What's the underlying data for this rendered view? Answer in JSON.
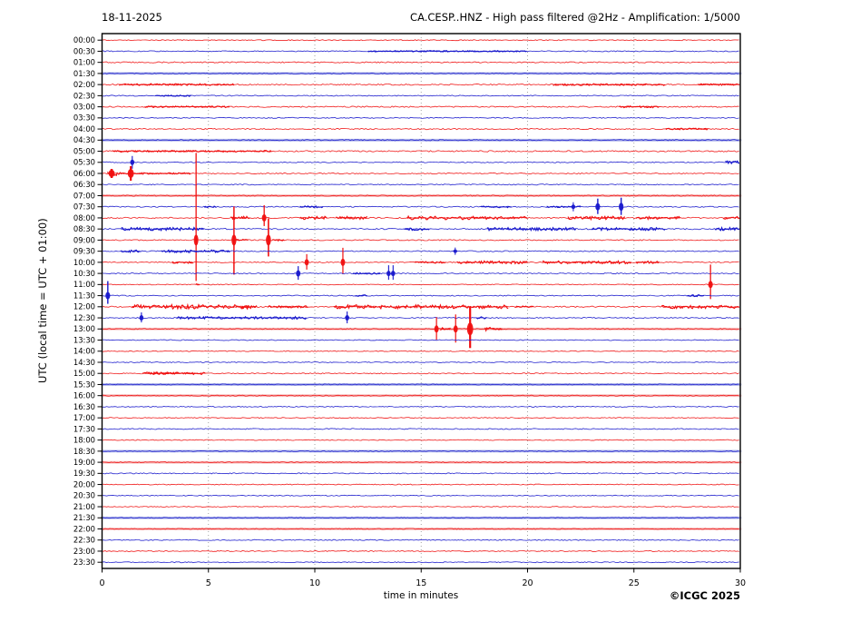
{
  "header": {
    "date": "18-11-2025",
    "title": "CA.CESP..HNZ - High pass filtered @2Hz - Amplification: 1/5000"
  },
  "axes": {
    "y_label": "UTC (local time = UTC + 01:00)",
    "x_label": "time in minutes",
    "x_ticks": [
      0,
      5,
      10,
      15,
      20,
      25,
      30
    ],
    "x_range": [
      0,
      30
    ],
    "grid": "vertical-dotted"
  },
  "footer": {
    "copyright": "©ICGC 2025"
  },
  "colors": {
    "red": "#f01010",
    "blue": "#1818cc",
    "red_light": "#f6b6b6",
    "blue_light": "#aab2e8",
    "grid": "#999999",
    "frame": "#000000"
  },
  "chart_data": {
    "type": "line",
    "subtype": "helicorder-seismogram",
    "station": "CA.CESP..HNZ",
    "filter": "High pass filtered @2Hz",
    "amplification": "1/5000",
    "date": "18-11-2025",
    "minutes_per_row": 30,
    "rows": [
      {
        "time": "00:00",
        "color": "red",
        "noise": 0.5
      },
      {
        "time": "00:30",
        "color": "blue",
        "noise": 0.55,
        "segments": [
          [
            12.5,
            20,
            0.7
          ]
        ]
      },
      {
        "time": "01:00",
        "color": "red",
        "noise": 0.65
      },
      {
        "time": "01:30",
        "color": "blue",
        "noise": 0.5,
        "band": true
      },
      {
        "time": "02:00",
        "color": "red",
        "noise": 0.7,
        "segments": [
          [
            0.8,
            6.2,
            0.95
          ],
          [
            21.2,
            26.5,
            1.0
          ],
          [
            28,
            30,
            0.8
          ]
        ]
      },
      {
        "time": "02:30",
        "color": "blue",
        "noise": 0.55,
        "segments": [
          [
            2.5,
            4.2,
            0.8
          ]
        ]
      },
      {
        "time": "03:00",
        "color": "red",
        "noise": 0.7,
        "segments": [
          [
            2,
            6,
            0.85
          ],
          [
            24.3,
            26.2,
            0.95
          ]
        ]
      },
      {
        "time": "03:30",
        "color": "blue",
        "noise": 0.55
      },
      {
        "time": "04:00",
        "color": "red",
        "noise": 0.65,
        "segments": [
          [
            26.5,
            28.5,
            0.8
          ]
        ]
      },
      {
        "time": "04:30",
        "color": "blue",
        "noise": 0.6,
        "band": true
      },
      {
        "time": "05:00",
        "color": "red",
        "noise": 0.75,
        "segments": [
          [
            0.5,
            8,
            0.85
          ]
        ]
      },
      {
        "time": "05:30",
        "color": "blue",
        "noise": 0.55,
        "segments": [
          [
            29.3,
            30,
            1.6
          ]
        ],
        "spikes": [
          {
            "m": 1.42,
            "up": 7,
            "dn": 7,
            "w": 1.1,
            "body": 3
          }
        ]
      },
      {
        "time": "06:00",
        "color": "red",
        "noise": 0.6,
        "segments": [
          [
            0.25,
            0.75,
            2.2
          ],
          [
            0.75,
            2.1,
            1.2
          ],
          [
            2.1,
            4.2,
            0.8
          ]
        ],
        "spikes": [
          {
            "m": 0.45,
            "up": 5,
            "dn": 5,
            "w": 2.5,
            "body": 4
          },
          {
            "m": 1.35,
            "up": 8,
            "dn": 8,
            "w": 2.2,
            "body": 5
          }
        ]
      },
      {
        "time": "06:30",
        "color": "blue",
        "noise": 0.55
      },
      {
        "time": "07:00",
        "color": "red",
        "noise": 0.6,
        "band": true
      },
      {
        "time": "07:30",
        "color": "blue",
        "noise": 0.6,
        "segments": [
          [
            4.8,
            5.4,
            0.9
          ],
          [
            9.3,
            10.4,
            1.0
          ],
          [
            17.8,
            19.3,
            1.0
          ],
          [
            20.9,
            22.5,
            0.8
          ]
        ],
        "spikes": [
          {
            "m": 22.15,
            "up": 5,
            "dn": 5,
            "w": 1,
            "body": 2.5
          },
          {
            "m": 23.3,
            "up": 9,
            "dn": 8,
            "w": 1.4,
            "body": 4
          },
          {
            "m": 24.4,
            "up": 10,
            "dn": 9,
            "w": 1.4,
            "body": 4.5
          }
        ]
      },
      {
        "time": "08:00",
        "color": "red",
        "noise": 0.7,
        "segments": [
          [
            6.05,
            6.95,
            2.0
          ],
          [
            9.3,
            10.6,
            1.7
          ],
          [
            11.0,
            12.5,
            1.7
          ],
          [
            14.35,
            17.5,
            1.9
          ],
          [
            17.5,
            20.0,
            1.5
          ],
          [
            21.9,
            24.6,
            1.7
          ],
          [
            25.1,
            27.2,
            1.5
          ],
          [
            29.2,
            30,
            1.5
          ]
        ],
        "spikes": [
          {
            "m": 7.62,
            "up": 14,
            "dn": 9,
            "w": 1.3,
            "body": 4
          }
        ]
      },
      {
        "time": "08:30",
        "color": "blue",
        "noise": 0.7,
        "segments": [
          [
            0.9,
            4.8,
            1.6
          ],
          [
            14.2,
            15.4,
            1.7
          ],
          [
            18.1,
            22.3,
            1.6
          ],
          [
            23.0,
            26.5,
            1.5
          ],
          [
            28.8,
            30,
            1.7
          ]
        ]
      },
      {
        "time": "09:00",
        "color": "red",
        "noise": 0.6,
        "segments": [
          [
            6.3,
            6.9,
            0.9
          ],
          [
            8.0,
            8.6,
            0.9
          ]
        ],
        "spikes": [
          {
            "m": 4.42,
            "up": 96,
            "dn": 45,
            "w": 1.3,
            "body": 6
          },
          {
            "m": 6.2,
            "up": 37,
            "dn": 38,
            "w": 1.5,
            "body": 6
          },
          {
            "m": 7.82,
            "up": 24,
            "dn": 18,
            "w": 1.6,
            "body": 6
          }
        ]
      },
      {
        "time": "09:30",
        "color": "blue",
        "noise": 0.6,
        "segments": [
          [
            0.9,
            1.8,
            1.3
          ],
          [
            2.8,
            6.0,
            1.4
          ]
        ],
        "spikes": [
          {
            "m": 16.6,
            "up": 4,
            "dn": 4,
            "w": 1,
            "body": 2
          }
        ]
      },
      {
        "time": "10:00",
        "color": "red",
        "noise": 0.6,
        "segments": [
          [
            3.3,
            4.3,
            1.1
          ],
          [
            14.7,
            16.2,
            0.9
          ],
          [
            16.7,
            20.0,
            1.5
          ],
          [
            20.7,
            24.9,
            1.5
          ],
          [
            25.1,
            26.2,
            1.3
          ]
        ],
        "spikes": [
          {
            "m": 9.62,
            "up": 9,
            "dn": 8,
            "w": 1.2,
            "body": 3.5
          },
          {
            "m": 11.32,
            "up": 16,
            "dn": 13,
            "w": 1.2,
            "body": 4
          }
        ]
      },
      {
        "time": "10:30",
        "color": "blue",
        "noise": 0.6,
        "segments": [
          [
            11.8,
            13.1,
            0.8
          ]
        ],
        "spikes": [
          {
            "m": 9.22,
            "up": 8,
            "dn": 7,
            "w": 1.2,
            "body": 3.5
          },
          {
            "m": 13.47,
            "up": 9,
            "dn": 7,
            "w": 1.1,
            "body": 3
          },
          {
            "m": 13.68,
            "up": 9,
            "dn": 7,
            "w": 1.1,
            "body": 3
          }
        ]
      },
      {
        "time": "11:00",
        "color": "red",
        "noise": 0.5,
        "segments": [
          [
            4.4,
            4.6,
            0.8
          ]
        ],
        "spikes": [
          {
            "m": 28.6,
            "up": 22,
            "dn": 16,
            "w": 1.3,
            "body": 4
          }
        ]
      },
      {
        "time": "11:30",
        "color": "blue",
        "noise": 0.55,
        "segments": [
          [
            11.9,
            12.5,
            0.9
          ],
          [
            27.5,
            28.3,
            1.0
          ]
        ],
        "spikes": [
          {
            "m": 0.27,
            "up": 16,
            "dn": 9,
            "w": 1.4,
            "body": 4
          }
        ]
      },
      {
        "time": "12:00",
        "color": "red",
        "noise": 0.7,
        "segments": [
          [
            1.4,
            7.3,
            2.2
          ],
          [
            6.55,
            6.9,
            2.6
          ],
          [
            7.8,
            9.7,
            1.1
          ],
          [
            10.9,
            15.2,
            2.1
          ],
          [
            15.2,
            19.1,
            1.9
          ],
          [
            19.4,
            20.3,
            0.9
          ],
          [
            26.3,
            30,
            1.9
          ]
        ]
      },
      {
        "time": "12:30",
        "color": "blue",
        "noise": 0.6,
        "segments": [
          [
            3.5,
            9.6,
            1.3
          ],
          [
            17.6,
            18.1,
            1.4
          ]
        ],
        "spikes": [
          {
            "m": 1.85,
            "up": 6,
            "dn": 5,
            "w": 1.1,
            "body": 3
          },
          {
            "m": 11.52,
            "up": 7,
            "dn": 6,
            "w": 1.1,
            "body": 3
          }
        ]
      },
      {
        "time": "13:00",
        "color": "red",
        "noise": 0.55,
        "band": true,
        "segments": [
          [
            15.9,
            16.4,
            1.5
          ],
          [
            18.0,
            18.8,
            2.0
          ]
        ],
        "spikes": [
          {
            "m": 15.72,
            "up": 13,
            "dn": 12,
            "w": 1.2,
            "body": 4
          },
          {
            "m": 16.62,
            "up": 16,
            "dn": 15,
            "w": 1.2,
            "body": 4
          },
          {
            "m": 17.3,
            "up": 25,
            "dn": 21,
            "w": 2.2,
            "body": 7
          }
        ]
      },
      {
        "time": "13:30",
        "color": "blue",
        "noise": 0.5
      },
      {
        "time": "14:00",
        "color": "red",
        "noise": 0.5
      },
      {
        "time": "14:30",
        "color": "blue",
        "noise": 0.5
      },
      {
        "time": "15:00",
        "color": "red",
        "noise": 0.55,
        "segments": [
          [
            1.9,
            4.9,
            1.2
          ],
          [
            2.4,
            3.6,
            1.6
          ]
        ]
      },
      {
        "time": "15:30",
        "color": "blue",
        "noise": 0.5,
        "band": true
      },
      {
        "time": "16:00",
        "color": "red",
        "noise": 0.5,
        "band": true
      },
      {
        "time": "16:30",
        "color": "blue",
        "noise": 0.5
      },
      {
        "time": "17:00",
        "color": "red",
        "noise": 0.5
      },
      {
        "time": "17:30",
        "color": "blue",
        "noise": 0.55
      },
      {
        "time": "18:00",
        "color": "red",
        "noise": 0.5
      },
      {
        "time": "18:30",
        "color": "blue",
        "noise": 0.5,
        "band": true
      },
      {
        "time": "19:00",
        "color": "red",
        "noise": 0.5,
        "band": true
      },
      {
        "time": "19:30",
        "color": "blue",
        "noise": 0.55
      },
      {
        "time": "20:00",
        "color": "red",
        "noise": 0.5
      },
      {
        "time": "20:30",
        "color": "blue",
        "noise": 0.5
      },
      {
        "time": "21:00",
        "color": "red",
        "noise": 0.5
      },
      {
        "time": "21:30",
        "color": "blue",
        "noise": 0.5,
        "band": true
      },
      {
        "time": "22:00",
        "color": "red",
        "noise": 0.5,
        "band": true
      },
      {
        "time": "22:30",
        "color": "blue",
        "noise": 0.55
      },
      {
        "time": "23:00",
        "color": "red",
        "noise": 0.5
      },
      {
        "time": "23:30",
        "color": "blue",
        "noise": 0.5
      }
    ]
  }
}
